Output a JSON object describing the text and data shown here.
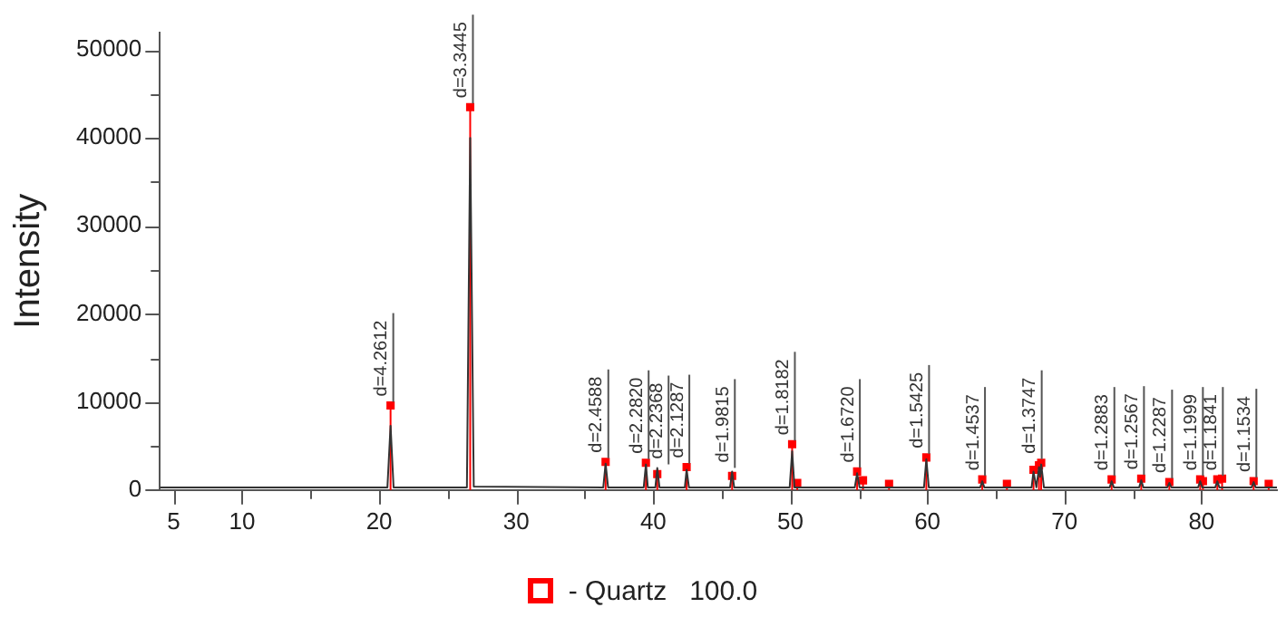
{
  "chart_data": {
    "type": "line",
    "ylabel": "Intensity",
    "xlim": [
      4,
      85.5
    ],
    "ylim": [
      0,
      52000
    ],
    "xticks": [
      5,
      10,
      {
        "value": 15,
        "label": null
      },
      20,
      {
        "value": 25,
        "label": null
      },
      30,
      {
        "value": 35,
        "label": null
      },
      40,
      {
        "value": 45,
        "label": null
      },
      50,
      {
        "value": 55,
        "label": null
      },
      60,
      {
        "value": 65,
        "label": null
      },
      70,
      {
        "value": 75,
        "label": null
      },
      80
    ],
    "yticks": [
      0,
      {
        "value": 5000,
        "label": null
      },
      10000,
      {
        "value": 15000,
        "label": null
      },
      20000,
      {
        "value": 25000,
        "label": null
      },
      30000,
      {
        "value": 35000,
        "label": null
      },
      40000,
      {
        "value": 45000,
        "label": null
      },
      50000
    ],
    "grid": false,
    "legend": "bottom",
    "series": [
      {
        "color": "#333333",
        "marker": "none",
        "x": [
          4,
          20.6,
          20.83,
          21.05,
          26.4,
          26.64,
          26.9,
          36.35,
          36.52,
          36.7,
          39.3,
          39.46,
          39.6,
          40.15,
          40.29,
          40.45,
          42.3,
          42.43,
          42.6,
          45.6,
          45.75,
          45.9,
          49.95,
          50.13,
          50.3,
          54.7,
          54.87,
          55.05,
          59.75,
          59.92,
          60.1,
          63.85,
          64.0,
          64.15,
          67.6,
          67.74,
          67.95,
          68.14,
          68.22,
          68.3,
          68.5,
          73.3,
          73.44,
          73.6,
          75.45,
          75.6,
          75.75,
          77.5,
          77.65,
          77.8,
          79.75,
          79.9,
          80.05,
          81.0,
          81.15,
          81.3,
          83.65,
          83.8,
          83.95,
          85.5
        ],
        "values": [
          300,
          300,
          7300,
          300,
          300,
          40000,
          400,
          300,
          3000,
          300,
          300,
          2900,
          300,
          300,
          2500,
          300,
          300,
          2300,
          300,
          300,
          2100,
          300,
          300,
          4400,
          300,
          300,
          1900,
          300,
          300,
          3500,
          300,
          300,
          1000,
          300,
          300,
          2100,
          300,
          2600,
          1500,
          2900,
          300,
          300,
          1000,
          300,
          300,
          1100,
          300,
          300,
          800,
          300,
          300,
          1000,
          300,
          300,
          1000,
          300,
          300,
          900,
          300,
          300
        ]
      },
      {
        "type": "lollipop",
        "name": "- Quartz   100.0",
        "color": "#ff0000",
        "marker": "square",
        "x": [
          20.83,
          26.64,
          36.52,
          39.46,
          40.29,
          42.43,
          45.75,
          50.13,
          50.5,
          54.87,
          55.3,
          57.2,
          59.92,
          64.0,
          65.8,
          67.74,
          68.14,
          68.3,
          73.44,
          75.6,
          77.65,
          79.9,
          80.1,
          81.15,
          81.5,
          83.8,
          84.9
        ],
        "values": [
          9600,
          43500,
          3200,
          3100,
          1800,
          2600,
          1600,
          5200,
          800,
          2100,
          1100,
          700,
          3700,
          1200,
          700,
          2300,
          2800,
          3100,
          1200,
          1300,
          900,
          1200,
          1000,
          1200,
          1300,
          1000,
          700
        ]
      }
    ],
    "annotations": [
      {
        "text": "d=4.2612",
        "x": 20.83,
        "y": 9600
      },
      {
        "text": "d=3.3445",
        "x": 26.64,
        "y": 43500
      },
      {
        "text": "d=2.4588",
        "x": 36.52,
        "y": 3200
      },
      {
        "text": "d=2.2820",
        "x": 39.46,
        "y": 3100
      },
      {
        "text": "d=2.2368",
        "x": 40.29,
        "y": 2500
      },
      {
        "text": "d=2.1287",
        "x": 42.43,
        "y": 2600
      },
      {
        "text": "d=1.9815",
        "x": 45.75,
        "y": 2100
      },
      {
        "text": "d=1.8182",
        "x": 50.13,
        "y": 5200
      },
      {
        "text": "d=1.6720",
        "x": 54.87,
        "y": 2100
      },
      {
        "text": "d=1.5425",
        "x": 59.92,
        "y": 3700
      },
      {
        "text": "d=1.4537",
        "x": 64.0,
        "y": 1200
      },
      {
        "text": "d=1.3747",
        "x": 68.14,
        "y": 3100
      },
      {
        "text": "d=1.2883",
        "x": 73.44,
        "y": 1200
      },
      {
        "text": "d=1.2567",
        "x": 75.6,
        "y": 1300
      },
      {
        "text": "d=1.2287",
        "x": 77.65,
        "y": 900
      },
      {
        "text": "d=1.1999",
        "x": 79.9,
        "y": 1200
      },
      {
        "text": "d=1.1841",
        "x": 81.15,
        "y": 1200
      },
      {
        "text": "d=1.1534",
        "x": 83.8,
        "y": 1000
      }
    ]
  }
}
